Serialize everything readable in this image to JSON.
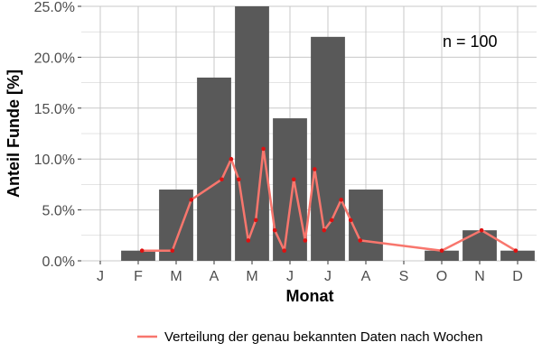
{
  "chart_data": {
    "type": "bar",
    "xlabel": "Monat",
    "ylabel": "Anteil Funde [%]",
    "ylim": [
      0,
      25
    ],
    "y_ticks": [
      "0.0%",
      "5.0%",
      "10.0%",
      "15.0%",
      "20.0%",
      "25.0%"
    ],
    "grid": true,
    "categories": [
      "J",
      "F",
      "M",
      "A",
      "M",
      "J",
      "J",
      "A",
      "S",
      "O",
      "N",
      "D"
    ],
    "values": [
      0,
      1,
      7,
      18,
      25,
      14,
      22,
      7,
      0,
      1,
      3,
      1
    ],
    "annotation": "n = 100",
    "line_series": {
      "name": "Verteilung der genau bekannten Daten nach Wochen",
      "color": "#F8766D",
      "points": [
        {
          "x": 2.1,
          "y": 1
        },
        {
          "x": 2.9,
          "y": 1
        },
        {
          "x": 3.4,
          "y": 6
        },
        {
          "x": 4.2,
          "y": 8
        },
        {
          "x": 4.45,
          "y": 10
        },
        {
          "x": 4.65,
          "y": 8
        },
        {
          "x": 4.9,
          "y": 2
        },
        {
          "x": 5.1,
          "y": 4
        },
        {
          "x": 5.3,
          "y": 11
        },
        {
          "x": 5.6,
          "y": 3
        },
        {
          "x": 5.85,
          "y": 1
        },
        {
          "x": 6.1,
          "y": 8
        },
        {
          "x": 6.4,
          "y": 2
        },
        {
          "x": 6.65,
          "y": 9
        },
        {
          "x": 6.9,
          "y": 3
        },
        {
          "x": 7.1,
          "y": 4
        },
        {
          "x": 7.35,
          "y": 6
        },
        {
          "x": 7.6,
          "y": 4
        },
        {
          "x": 7.85,
          "y": 2
        },
        {
          "x": 10.0,
          "y": 1
        },
        {
          "x": 11.05,
          "y": 3
        },
        {
          "x": 11.95,
          "y": 1
        }
      ]
    },
    "colors": {
      "bar": "#595959",
      "grid": "#c8c8c8",
      "point": "#dd1111"
    },
    "legend_position": "bottom"
  }
}
